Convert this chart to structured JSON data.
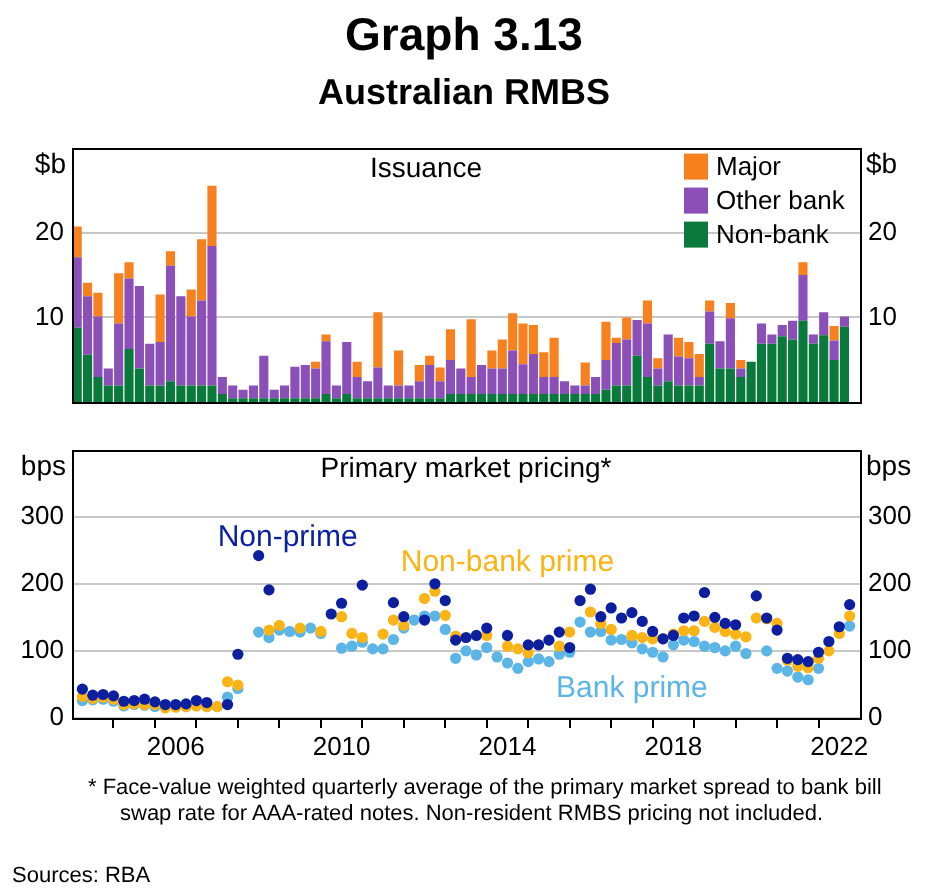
{
  "chart_data": [
    {
      "type": "bar",
      "title": "Graph 3.13",
      "subtitle": "Australian RMBS",
      "ylabel": "$b",
      "y2label": "$b",
      "annotations": [
        "Issuance"
      ],
      "x": [
        2004.125,
        2004.375,
        2004.625,
        2004.875,
        2005.125,
        2005.375,
        2005.625,
        2005.875,
        2006.125,
        2006.375,
        2006.625,
        2006.875,
        2007.125,
        2007.375,
        2007.625,
        2007.875,
        2008.125,
        2008.375,
        2008.625,
        2008.875,
        2009.125,
        2009.375,
        2009.625,
        2009.875,
        2010.125,
        2010.375,
        2010.625,
        2010.875,
        2011.125,
        2011.375,
        2011.625,
        2011.875,
        2012.125,
        2012.375,
        2012.625,
        2012.875,
        2013.125,
        2013.375,
        2013.625,
        2013.875,
        2014.125,
        2014.375,
        2014.625,
        2014.875,
        2015.125,
        2015.375,
        2015.625,
        2015.875,
        2016.125,
        2016.375,
        2016.625,
        2016.875,
        2017.125,
        2017.375,
        2017.625,
        2017.875,
        2018.125,
        2018.375,
        2018.625,
        2018.875,
        2019.125,
        2019.375,
        2019.625,
        2019.875,
        2020.125,
        2020.375,
        2020.625,
        2020.875,
        2021.125,
        2021.375,
        2021.625,
        2021.875,
        2022.125,
        2022.375,
        2022.625
      ],
      "series": [
        {
          "name": "Non-bank",
          "color": "#0a7a3c",
          "values": [
            8.8,
            5.6,
            3,
            2,
            2,
            6.3,
            4,
            2,
            2,
            2.5,
            2,
            2,
            2,
            2,
            1,
            0.5,
            0.5,
            0.5,
            0.5,
            0.5,
            0.5,
            0.5,
            0.5,
            0.5,
            1,
            0.5,
            1,
            0.5,
            0.5,
            0.5,
            0.5,
            0.5,
            0.5,
            0.5,
            0.5,
            0.5,
            1,
            1,
            1,
            1,
            1,
            1,
            1,
            1,
            1,
            1,
            1,
            1,
            1,
            1,
            1,
            1.5,
            2,
            2,
            5.5,
            3,
            2,
            2.5,
            2,
            2,
            2,
            6.9,
            4,
            4,
            3,
            4.8,
            6.9,
            6.9,
            7.8,
            7.4,
            9.6,
            6.9,
            7.9,
            5,
            8.9
          ]
        },
        {
          "name": "Other bank",
          "color": "#8b4fb8",
          "values": [
            8.3,
            6.9,
            7.1,
            2,
            7.3,
            8.3,
            9.7,
            4.9,
            5.1,
            13.6,
            10.5,
            8.1,
            10,
            16.4,
            2,
            1.5,
            1,
            1.5,
            5,
            1,
            1.5,
            3.7,
            3.9,
            3.5,
            6.2,
            1.5,
            6.1,
            2.5,
            2,
            3.6,
            1.5,
            1.5,
            1.5,
            2,
            3.9,
            2,
            4,
            3,
            2,
            3.4,
            3,
            3,
            5.1,
            3.5,
            4.7,
            2,
            2,
            1.5,
            1,
            1,
            2,
            3.5,
            5,
            5.4,
            4.2,
            6.3,
            2,
            5.5,
            3.4,
            3.2,
            1,
            3.8,
            3.2,
            5.9,
            1,
            0,
            2.4,
            1.1,
            1.3,
            2.2,
            5.4,
            1.1,
            2.7,
            2.3,
            1.2
          ]
        },
        {
          "name": "Major",
          "color": "#f7801f",
          "values": [
            3.6,
            1.6,
            2.8,
            0,
            5.9,
            1.9,
            0,
            0,
            5.6,
            1.7,
            0,
            3.2,
            7.2,
            7.1,
            0,
            0,
            0,
            0,
            0,
            0,
            0,
            0,
            0,
            0.8,
            0.8,
            0,
            0,
            1.8,
            0,
            6.5,
            0,
            4.1,
            0,
            1.9,
            1.1,
            1.6,
            3.6,
            0,
            6.8,
            0,
            2.1,
            3.4,
            4.4,
            4.8,
            3.4,
            2.9,
            4.6,
            0,
            0,
            2.7,
            0,
            4.5,
            0.6,
            2.6,
            0,
            2.7,
            1.2,
            0,
            2.2,
            1.9,
            2.7,
            1.3,
            0,
            1.8,
            1,
            0,
            0,
            0,
            0,
            0,
            1.5,
            0,
            0,
            1.7,
            0
          ]
        }
      ],
      "stacked": true,
      "xlim": [
        2004,
        2023
      ],
      "ylim": [
        0,
        30
      ],
      "yticks": [
        10,
        20
      ],
      "y2lim": [
        0,
        30
      ],
      "y2ticks": [
        10,
        20
      ],
      "grid": "y",
      "legend": "top right",
      "tick_labels": "y"
    },
    {
      "type": "scatter",
      "title": "Primary market pricing*",
      "ylabel": "bps",
      "y2label": "bps",
      "annotations": [
        "* Face-value weighted quarterly average of the primary market spread to bank bill swap rate for AAA-rated notes. Non-resident RMBS pricing not included.",
        "Sources: RBA"
      ],
      "x": [
        2004.25,
        2004.5,
        2004.75,
        2005,
        2005.25,
        2005.5,
        2005.75,
        2006,
        2006.25,
        2006.5,
        2006.75,
        2007,
        2007.25,
        2007.5,
        2007.75,
        2008,
        2008.25,
        2008.5,
        2008.75,
        2009,
        2009.25,
        2009.5,
        2009.75,
        2010,
        2010.25,
        2010.5,
        2010.75,
        2011,
        2011.25,
        2011.5,
        2011.75,
        2012,
        2012.25,
        2012.5,
        2012.75,
        2013,
        2013.25,
        2013.5,
        2013.75,
        2014,
        2014.25,
        2014.5,
        2014.75,
        2015,
        2015.25,
        2015.5,
        2015.75,
        2016,
        2016.25,
        2016.5,
        2016.75,
        2017,
        2017.25,
        2017.5,
        2017.75,
        2018,
        2018.25,
        2018.5,
        2018.75,
        2019,
        2019.25,
        2019.5,
        2019.75,
        2020,
        2020.25,
        2020.5,
        2020.75,
        2021,
        2021.25,
        2021.5,
        2021.75,
        2022,
        2022.25,
        2022.5,
        2022.75
      ],
      "series": [
        {
          "name": "Non-prime",
          "color": "#0c1f9e",
          "values": [
            43,
            34,
            35,
            33,
            25,
            26,
            28,
            24,
            20,
            20,
            21,
            26,
            23,
            null,
            20,
            95,
            null,
            242,
            191,
            null,
            null,
            null,
            null,
            null,
            155,
            171,
            null,
            198,
            null,
            null,
            172,
            151,
            null,
            146,
            200,
            175,
            116,
            120,
            123,
            134,
            null,
            123,
            null,
            109,
            109,
            116,
            128,
            105,
            175,
            192,
            151,
            164,
            149,
            157,
            144,
            129,
            118,
            123,
            149,
            152,
            187,
            150,
            141,
            139,
            null,
            182,
            149,
            131,
            89,
            87,
            84,
            98,
            114,
            136,
            169
          ]
        },
        {
          "name": "Non-bank prime",
          "color": "#fbb416",
          "values": [
            32,
            29,
            31,
            28,
            20,
            21,
            20,
            20,
            15,
            16,
            17,
            18,
            17,
            17,
            54,
            49,
            null,
            null,
            131,
            138,
            null,
            134,
            null,
            129,
            null,
            151,
            126,
            120,
            null,
            125,
            146,
            138,
            null,
            178,
            189,
            153,
            122,
            null,
            null,
            123,
            null,
            107,
            103,
            97,
            109,
            null,
            107,
            128,
            null,
            158,
            141,
            132,
            null,
            123,
            120,
            118,
            118,
            125,
            130,
            130,
            144,
            135,
            129,
            125,
            121,
            149,
            148,
            141,
            86,
            77,
            75,
            89,
            100,
            126,
            152
          ]
        },
        {
          "name": "Bank prime",
          "color": "#5bb5e6",
          "values": [
            26,
            27,
            28,
            25,
            18,
            20,
            19,
            17,
            null,
            null,
            17,
            null,
            17,
            17,
            31,
            44,
            null,
            128,
            120,
            131,
            129,
            128,
            134,
            126,
            null,
            104,
            107,
            113,
            103,
            103,
            117,
            134,
            146,
            152,
            152,
            132,
            89,
            100,
            94,
            105,
            91,
            82,
            74,
            84,
            88,
            84,
            95,
            98,
            143,
            128,
            129,
            116,
            117,
            112,
            103,
            98,
            91,
            109,
            116,
            114,
            107,
            105,
            100,
            107,
            96,
            null,
            100,
            74,
            70,
            61,
            57,
            74,
            null,
            null,
            137
          ]
        }
      ],
      "xlim": [
        2004,
        2023
      ],
      "xticks": [
        {
          "value": 2005,
          "label": null
        },
        {
          "value": 2006,
          "label": null
        },
        {
          "value": 2006.5,
          "label": "2006"
        },
        {
          "value": 2007,
          "label": null
        },
        {
          "value": 2008,
          "label": null
        },
        {
          "value": 2009,
          "label": null
        },
        {
          "value": 2010,
          "label": null
        },
        {
          "value": 2010.5,
          "label": "2010"
        },
        {
          "value": 2011,
          "label": null
        },
        {
          "value": 2012,
          "label": null
        },
        {
          "value": 2013,
          "label": null
        },
        {
          "value": 2014,
          "label": null
        },
        {
          "value": 2014.5,
          "label": "2014"
        },
        {
          "value": 2015,
          "label": null
        },
        {
          "value": 2016,
          "label": null
        },
        {
          "value": 2017,
          "label": null
        },
        {
          "value": 2018,
          "label": null
        },
        {
          "value": 2018.5,
          "label": "2018"
        },
        {
          "value": 2019,
          "label": null
        },
        {
          "value": 2020,
          "label": null
        },
        {
          "value": 2021,
          "label": null
        },
        {
          "value": 2022,
          "label": null
        },
        {
          "value": 2022.5,
          "label": "2022"
        }
      ],
      "ylim": [
        0,
        400
      ],
      "yticks": [
        0,
        100,
        200,
        300
      ],
      "y2lim": [
        0,
        400
      ],
      "y2ticks": [
        0,
        100,
        200,
        300
      ],
      "grid": "y",
      "marker": "circle"
    }
  ]
}
